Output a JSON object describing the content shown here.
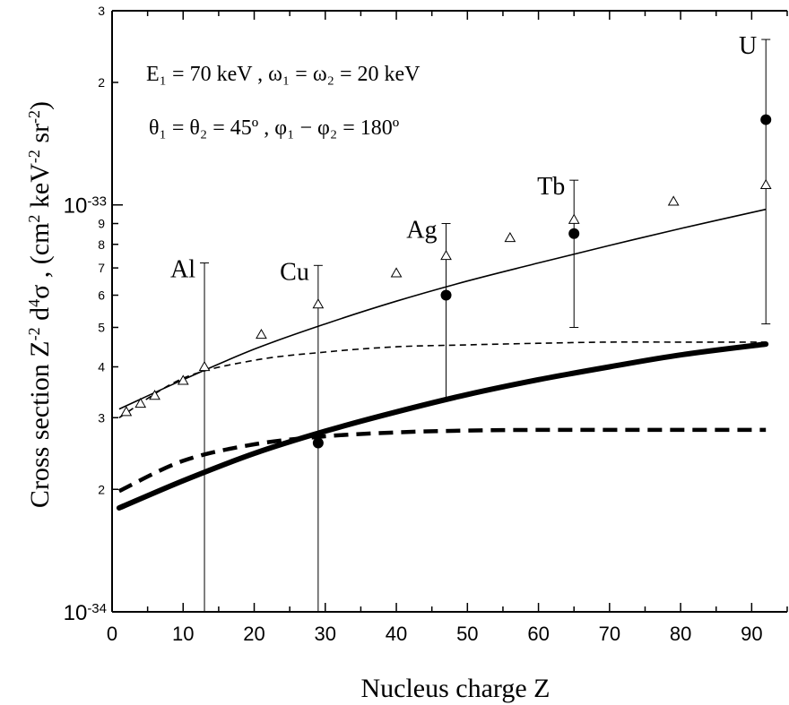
{
  "chart_data": {
    "type": "scatter",
    "xlabel": "Nucleus charge  Z",
    "ylabel": {
      "prefix": "Cross section   Z",
      "prefix_sup": "-2",
      "mid": " d",
      "mid_sup": "4",
      "sigma": "σ ,  (cm",
      "cm_sup": "2",
      "kev": " keV",
      "kev_sup": "-2",
      "sr": " sr",
      "sr_sup": "-2",
      "end": ")"
    },
    "xlim": [
      0,
      95
    ],
    "ylim": [
      1e-34,
      3e-33
    ],
    "yscale": "log",
    "x_ticks": [
      0,
      10,
      20,
      30,
      40,
      50,
      60,
      70,
      80,
      90
    ],
    "x_tick_labels": [
      "0",
      "10",
      "20",
      "30",
      "40",
      "50",
      "60",
      "70",
      "80",
      "90"
    ],
    "y_major_ticks": [
      {
        "value": 1e-34,
        "base": "10",
        "exp": "-34"
      },
      {
        "value": 1e-33,
        "base": "10",
        "exp": "-33"
      }
    ],
    "y_minor_labels": [
      {
        "value": 2e-34,
        "label": "2"
      },
      {
        "value": 3e-34,
        "label": "3"
      },
      {
        "value": 4e-34,
        "label": "4"
      },
      {
        "value": 5e-34,
        "label": "5"
      },
      {
        "value": 6e-34,
        "label": "6"
      },
      {
        "value": 7e-34,
        "label": "7"
      },
      {
        "value": 8e-34,
        "label": "8"
      },
      {
        "value": 9e-34,
        "label": "9"
      },
      {
        "value": 2e-33,
        "label": "2"
      },
      {
        "value": 3e-33,
        "label": "3"
      }
    ],
    "grid": false,
    "annotation_lines": [
      "E₁ = 70 keV ,  ω₁ = ω₂ = 20 keV",
      "θ₁ = θ₂ = 45º ,  φ₁ − φ₂ = 180º"
    ],
    "series": [
      {
        "style": "thin-solid",
        "x": [
          1,
          10,
          20,
          30,
          40,
          50,
          60,
          70,
          80,
          92
        ],
        "values": [
          3.15e-34,
          3.72e-34,
          4.42e-34,
          5.1e-34,
          5.8e-34,
          6.5e-34,
          7.2e-34,
          7.95e-34,
          8.75e-34,
          9.75e-34
        ]
      },
      {
        "style": "thin-dashed",
        "x": [
          1,
          10,
          20,
          30,
          40,
          50,
          60,
          70,
          80,
          92
        ],
        "values": [
          3e-34,
          3.75e-34,
          4.15e-34,
          4.35e-34,
          4.48e-34,
          4.53e-34,
          4.57e-34,
          4.6e-34,
          4.6e-34,
          4.6e-34
        ]
      },
      {
        "style": "thick-solid",
        "x": [
          1,
          10,
          20,
          30,
          40,
          50,
          60,
          70,
          80,
          92
        ],
        "values": [
          1.8e-34,
          2.1e-34,
          2.45e-34,
          2.78e-34,
          3.1e-34,
          3.42e-34,
          3.72e-34,
          4e-34,
          4.28e-34,
          4.55e-34
        ]
      },
      {
        "style": "thick-dashed",
        "x": [
          1,
          10,
          20,
          30,
          40,
          50,
          60,
          70,
          80,
          92
        ],
        "values": [
          1.98e-34,
          2.35e-34,
          2.58e-34,
          2.7e-34,
          2.76e-34,
          2.79e-34,
          2.8e-34,
          2.8e-34,
          2.8e-34,
          2.8e-34
        ]
      },
      {
        "style": "open-triangles",
        "x": [
          2,
          4,
          6,
          10,
          13,
          21,
          29,
          40,
          47,
          56,
          65,
          79,
          92
        ],
        "values": [
          3.1e-34,
          3.25e-34,
          3.4e-34,
          3.7e-34,
          4e-34,
          4.8e-34,
          5.7e-34,
          6.8e-34,
          7.5e-34,
          8.3e-34,
          9.2e-34,
          1.02e-33,
          1.12e-33
        ]
      },
      {
        "style": "filled-circles",
        "x": [
          29,
          47,
          65,
          92
        ],
        "values": [
          2.6e-34,
          6e-34,
          8.5e-34,
          1.62e-33
        ]
      }
    ],
    "error_bars": [
      {
        "x": 13,
        "low": 1e-34,
        "high": 7.2e-34,
        "label": "Al"
      },
      {
        "x": 29,
        "low": 1e-34,
        "high": 7.1e-34,
        "label": "Cu"
      },
      {
        "x": 47,
        "low": 3.3e-34,
        "high": 9e-34,
        "label": "Ag"
      },
      {
        "x": 65,
        "low": 5e-34,
        "high": 1.15e-33,
        "label": "Tb"
      },
      {
        "x": 92,
        "low": 5.1e-34,
        "high": 2.55e-33,
        "label": "U"
      }
    ],
    "element_labels": [
      {
        "text": "Al",
        "x": 13
      },
      {
        "text": "Cu",
        "x": 29
      },
      {
        "text": "Ag",
        "x": 47
      },
      {
        "text": "Tb",
        "x": 65
      },
      {
        "text": "U",
        "x": 92
      }
    ]
  }
}
